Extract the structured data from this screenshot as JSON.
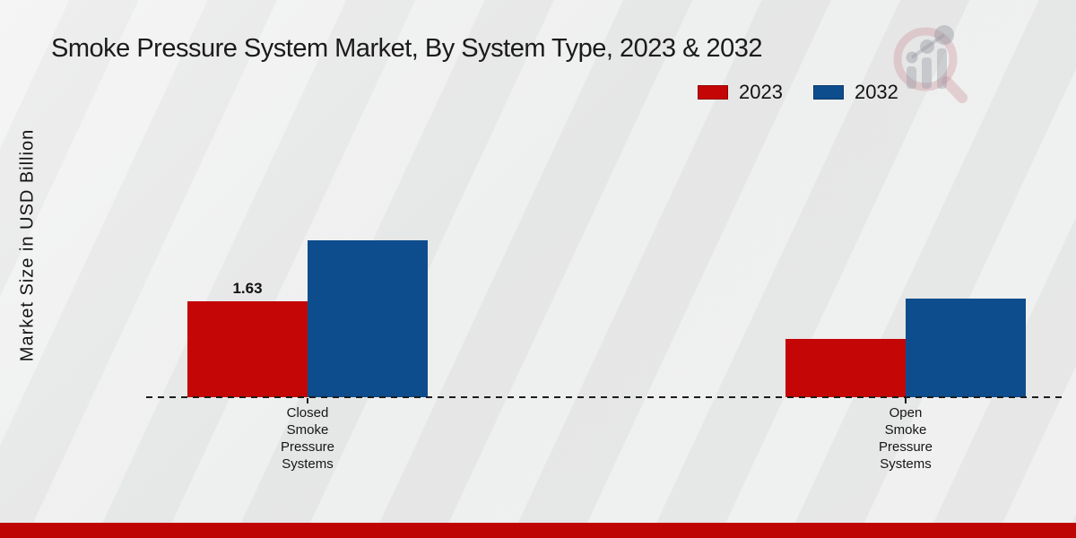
{
  "title": "Smoke Pressure System Market, By System Type, 2023 & 2032",
  "ylabel": "Market Size in USD Billion",
  "colors": {
    "series_2023": "#c40606",
    "series_2032": "#0e4d8d",
    "footer_bar": "#bf0404",
    "axis": "#1c1c1c"
  },
  "icons": {
    "watermark": "bar-chart-magnifier-logo"
  },
  "chart_data": {
    "type": "bar",
    "title": "Smoke Pressure System Market, By System Type, 2023 & 2032",
    "xlabel": "",
    "ylabel": "Market Size in USD Billion",
    "categories": [
      "Closed Smoke Pressure Systems",
      "Open Smoke Pressure Systems"
    ],
    "series": [
      {
        "name": "2023",
        "color": "#c40606",
        "values": [
          1.63,
          0.99
        ],
        "data_labels": [
          "1.63",
          ""
        ]
      },
      {
        "name": "2032",
        "color": "#0e4d8d",
        "values": [
          2.67,
          1.68
        ],
        "data_labels": [
          "",
          ""
        ]
      }
    ],
    "ylim": [
      0,
      3.2
    ],
    "grid": false,
    "y_axis_ticks_visible": false,
    "baseline_style": "dashed",
    "legend_position": "top-right"
  }
}
